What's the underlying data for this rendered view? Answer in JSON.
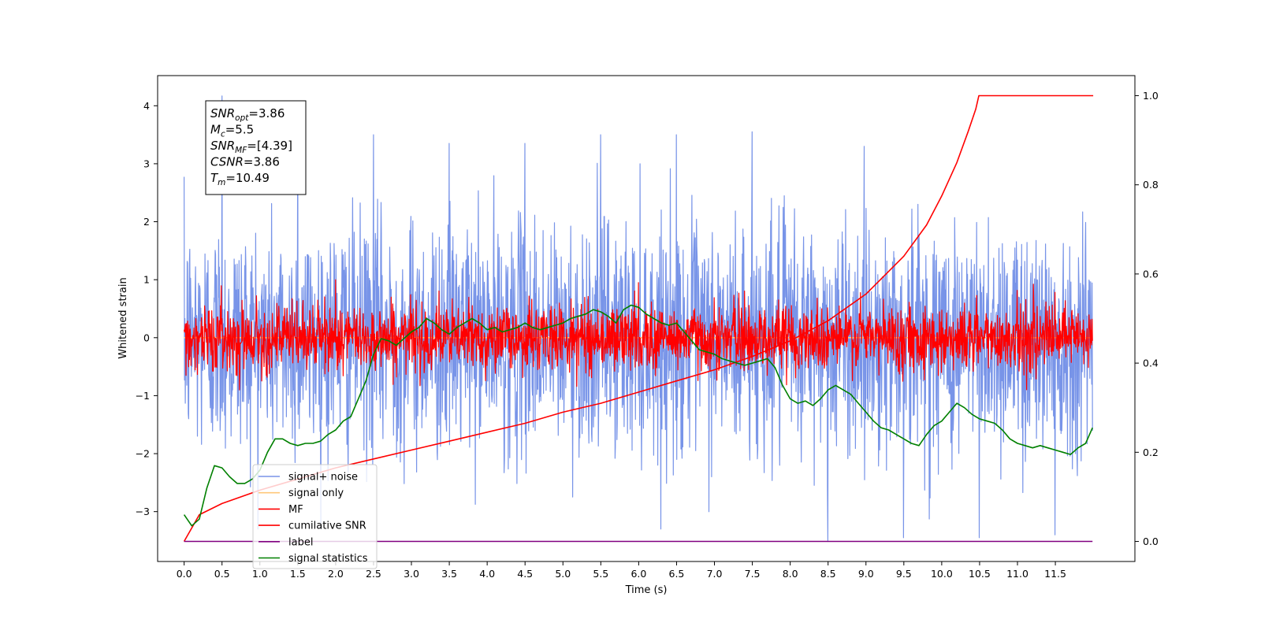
{
  "chart_data": {
    "type": "line",
    "xlabel": "Time (s)",
    "ylabel": "Whitened strain",
    "xlim": [
      -0.35,
      12.55
    ],
    "ylim": [
      -3.86,
      4.52
    ],
    "ylim_right": [
      -0.045,
      1.045
    ],
    "xticks": [
      "0.0",
      "0.5",
      "1.0",
      "1.5",
      "2.0",
      "2.5",
      "3.0",
      "3.5",
      "4.0",
      "4.5",
      "5.0",
      "5.5",
      "6.0",
      "6.5",
      "7.0",
      "7.5",
      "8.0",
      "8.5",
      "9.0",
      "9.5",
      "10.0",
      "10.5",
      "11.0",
      "11.5"
    ],
    "xtick_values": [
      0.0,
      0.5,
      1.0,
      1.5,
      2.0,
      2.5,
      3.0,
      3.5,
      4.0,
      4.5,
      5.0,
      5.5,
      6.0,
      6.5,
      7.0,
      7.5,
      8.0,
      8.5,
      9.0,
      9.5,
      10.0,
      10.5,
      11.0,
      11.5
    ],
    "yticks_left": [
      "−3",
      "−2",
      "−1",
      "0",
      "1",
      "2",
      "3",
      "4"
    ],
    "ytick_left_values": [
      -3,
      -2,
      -1,
      0,
      1,
      2,
      3,
      4
    ],
    "yticks_right": [
      "0.0",
      "0.2",
      "0.4",
      "0.6",
      "0.8",
      "1.0"
    ],
    "ytick_right_values": [
      0.0,
      0.2,
      0.4,
      0.6,
      0.8,
      1.0
    ],
    "grid": false,
    "legend_position": "lower-left",
    "annotation": {
      "lines": [
        {
          "main": "SNR",
          "sub": "opt",
          "rest": "=3.86"
        },
        {
          "main": "M",
          "sub": "c",
          "rest": "=5.5"
        },
        {
          "main": "SNR",
          "sub": "MF",
          "rest": "=[4.39]"
        },
        {
          "main": "CSNR",
          "sub": "",
          "rest": "=3.86"
        },
        {
          "main": "T",
          "sub": "m",
          "rest": "=10.49"
        }
      ]
    },
    "series": [
      {
        "name": "signal+ noise",
        "color": "#7894e8",
        "axis": "left",
        "kind": "noise",
        "x_range": [
          0,
          11.99
        ],
        "std": 1.0,
        "peak_values": [
          4.17,
          3.85,
          3.5,
          3.35,
          3.35,
          3.5,
          3.5,
          3.55,
          -3.5,
          -3.45,
          -3.45,
          -3.4
        ]
      },
      {
        "name": "signal only",
        "color": "#ffc87a",
        "axis": "left",
        "kind": "flat",
        "x_range": [
          0,
          11.99
        ],
        "value": 0.0
      },
      {
        "name": "MF",
        "color": "#ff0000",
        "axis": "left",
        "kind": "noise",
        "x_range": [
          0,
          11.99
        ],
        "std": 0.28,
        "peak_values": [
          1.0,
          0.95,
          -0.6
        ]
      },
      {
        "name": "cumilative SNR",
        "color": "#ff0000",
        "axis": "right",
        "x": [
          0.0,
          0.2,
          0.5,
          1.0,
          1.5,
          2.0,
          2.5,
          3.0,
          3.5,
          4.0,
          4.5,
          5.0,
          5.5,
          6.0,
          6.5,
          7.0,
          7.5,
          8.0,
          8.5,
          9.0,
          9.5,
          9.8,
          10.0,
          10.2,
          10.35,
          10.45,
          10.49,
          12.0
        ],
        "y": [
          0.0,
          0.06,
          0.085,
          0.115,
          0.14,
          0.165,
          0.185,
          0.205,
          0.225,
          0.245,
          0.265,
          0.29,
          0.31,
          0.335,
          0.36,
          0.385,
          0.415,
          0.45,
          0.495,
          0.555,
          0.64,
          0.71,
          0.775,
          0.85,
          0.92,
          0.97,
          1.0,
          1.0
        ]
      },
      {
        "name": "label",
        "color": "#800080",
        "axis": "right",
        "x": [
          0.0,
          11.99
        ],
        "y": [
          0.0,
          0.0
        ]
      },
      {
        "name": "signal statistics",
        "color": "#008000",
        "axis": "right",
        "x": [
          0.0,
          0.1,
          0.2,
          0.3,
          0.4,
          0.5,
          0.6,
          0.7,
          0.8,
          0.9,
          1.0,
          1.1,
          1.2,
          1.3,
          1.4,
          1.5,
          1.6,
          1.7,
          1.8,
          1.9,
          2.0,
          2.1,
          2.2,
          2.3,
          2.4,
          2.5,
          2.6,
          2.7,
          2.8,
          2.9,
          3.0,
          3.1,
          3.2,
          3.3,
          3.4,
          3.5,
          3.6,
          3.7,
          3.8,
          3.9,
          4.0,
          4.1,
          4.2,
          4.3,
          4.4,
          4.5,
          4.6,
          4.7,
          4.8,
          4.9,
          5.0,
          5.1,
          5.2,
          5.3,
          5.4,
          5.5,
          5.6,
          5.7,
          5.8,
          5.9,
          6.0,
          6.1,
          6.2,
          6.3,
          6.4,
          6.5,
          6.6,
          6.7,
          6.8,
          6.9,
          7.0,
          7.1,
          7.2,
          7.3,
          7.4,
          7.5,
          7.6,
          7.7,
          7.8,
          7.9,
          8.0,
          8.1,
          8.2,
          8.3,
          8.4,
          8.5,
          8.6,
          8.7,
          8.8,
          8.9,
          9.0,
          9.1,
          9.2,
          9.3,
          9.4,
          9.5,
          9.6,
          9.7,
          9.8,
          9.9,
          10.0,
          10.1,
          10.2,
          10.3,
          10.4,
          10.5,
          10.6,
          10.7,
          10.8,
          10.9,
          11.0,
          11.1,
          11.2,
          11.3,
          11.4,
          11.5,
          11.6,
          11.7,
          11.8,
          11.9,
          11.99
        ],
        "y": [
          0.06,
          0.035,
          0.05,
          0.12,
          0.17,
          0.165,
          0.145,
          0.13,
          0.13,
          0.14,
          0.16,
          0.2,
          0.23,
          0.23,
          0.22,
          0.215,
          0.22,
          0.22,
          0.225,
          0.24,
          0.25,
          0.27,
          0.28,
          0.32,
          0.36,
          0.42,
          0.455,
          0.45,
          0.44,
          0.455,
          0.47,
          0.48,
          0.5,
          0.49,
          0.475,
          0.465,
          0.48,
          0.49,
          0.5,
          0.49,
          0.475,
          0.48,
          0.47,
          0.475,
          0.48,
          0.49,
          0.48,
          0.475,
          0.48,
          0.485,
          0.49,
          0.5,
          0.505,
          0.51,
          0.52,
          0.515,
          0.505,
          0.49,
          0.52,
          0.53,
          0.525,
          0.51,
          0.5,
          0.49,
          0.485,
          0.49,
          0.47,
          0.45,
          0.43,
          0.425,
          0.42,
          0.41,
          0.405,
          0.4,
          0.395,
          0.4,
          0.405,
          0.41,
          0.39,
          0.35,
          0.32,
          0.31,
          0.315,
          0.305,
          0.32,
          0.34,
          0.35,
          0.34,
          0.33,
          0.31,
          0.29,
          0.27,
          0.255,
          0.25,
          0.24,
          0.23,
          0.22,
          0.215,
          0.24,
          0.26,
          0.27,
          0.29,
          0.31,
          0.3,
          0.285,
          0.275,
          0.27,
          0.265,
          0.25,
          0.23,
          0.22,
          0.215,
          0.21,
          0.215,
          0.21,
          0.205,
          0.2,
          0.195,
          0.21,
          0.22,
          0.255
        ]
      }
    ]
  }
}
